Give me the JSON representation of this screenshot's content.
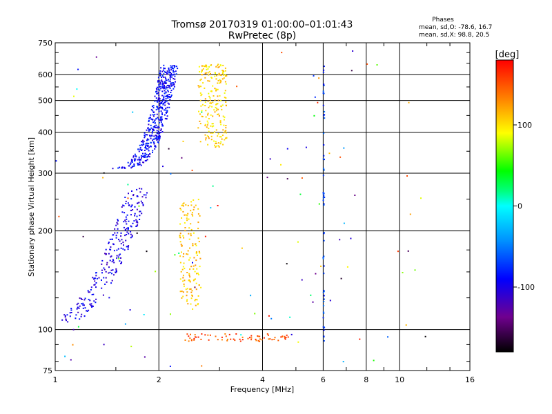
{
  "chart_data": {
    "type": "scatter",
    "title": "Tromsø 20170319 01:00:00–01:01:43",
    "subtitle": "RwPretec (8p)",
    "xlabel": "Frequency [MHz]",
    "ylabel": "Stationary phase Virtual Height [km]",
    "xscale": "log",
    "yscale": "log",
    "xlim": [
      1,
      16
    ],
    "ylim": [
      75,
      750
    ],
    "xticks": [
      1,
      2,
      4,
      6,
      8,
      10,
      16
    ],
    "xtick_labels": [
      "1",
      "2",
      "4",
      "6",
      "8",
      "10",
      "16"
    ],
    "x_gridlines": [
      2,
      4,
      6,
      8,
      10
    ],
    "yticks": [
      75,
      100,
      200,
      300,
      400,
      500,
      600,
      750
    ],
    "ytick_labels": [
      "75",
      "100",
      "200",
      "300",
      "400",
      "500",
      "600",
      "750"
    ],
    "y_gridlines": [
      100,
      200,
      300,
      400,
      500,
      600
    ],
    "stats": {
      "heading": "Phases",
      "line_o": "mean, sd,O: -78.6, 16.7",
      "line_x": "mean, sd,X:  98.8, 20.5"
    },
    "colorbar": {
      "label": "[deg]",
      "range": [
        -180,
        180
      ],
      "ticks": [
        -100,
        0,
        100
      ],
      "tick_labels": [
        "-100",
        "0",
        "100"
      ]
    },
    "series": [
      {
        "name": "O-trace F1/F2 (blue)",
        "phase": -90,
        "f_range": [
          1.35,
          2.15
        ],
        "h_range": [
          310,
          640
        ],
        "count": 480
      },
      {
        "name": "O-trace E/F1 low (blue)",
        "phase": -100,
        "f_range": [
          1.0,
          1.75
        ],
        "h_range": [
          105,
          270
        ],
        "count": 260
      },
      {
        "name": "X-trace F (yellow)",
        "phase": 105,
        "f_range": [
          2.6,
          3.15
        ],
        "h_range": [
          360,
          650
        ],
        "count": 220
      },
      {
        "name": "X-trace lower (yellow)",
        "phase": 108,
        "f_range": [
          2.3,
          2.65
        ],
        "h_range": [
          115,
          250
        ],
        "count": 150
      },
      {
        "name": "Es / E-layer (orange)",
        "phase": 150,
        "f_range": [
          2.25,
          4.8
        ],
        "h_range": [
          92,
          97
        ],
        "count": 70
      },
      {
        "name": "Vertical artefact 6 MHz (blue)",
        "phase": -70,
        "f_range": [
          6.0,
          6.05
        ],
        "h_range": [
          90,
          640
        ],
        "count": 55
      },
      {
        "name": "Scattered noise",
        "phase": 0,
        "f_range": [
          1.0,
          12.0
        ],
        "h_range": [
          76,
          720
        ],
        "count": 110
      }
    ]
  }
}
